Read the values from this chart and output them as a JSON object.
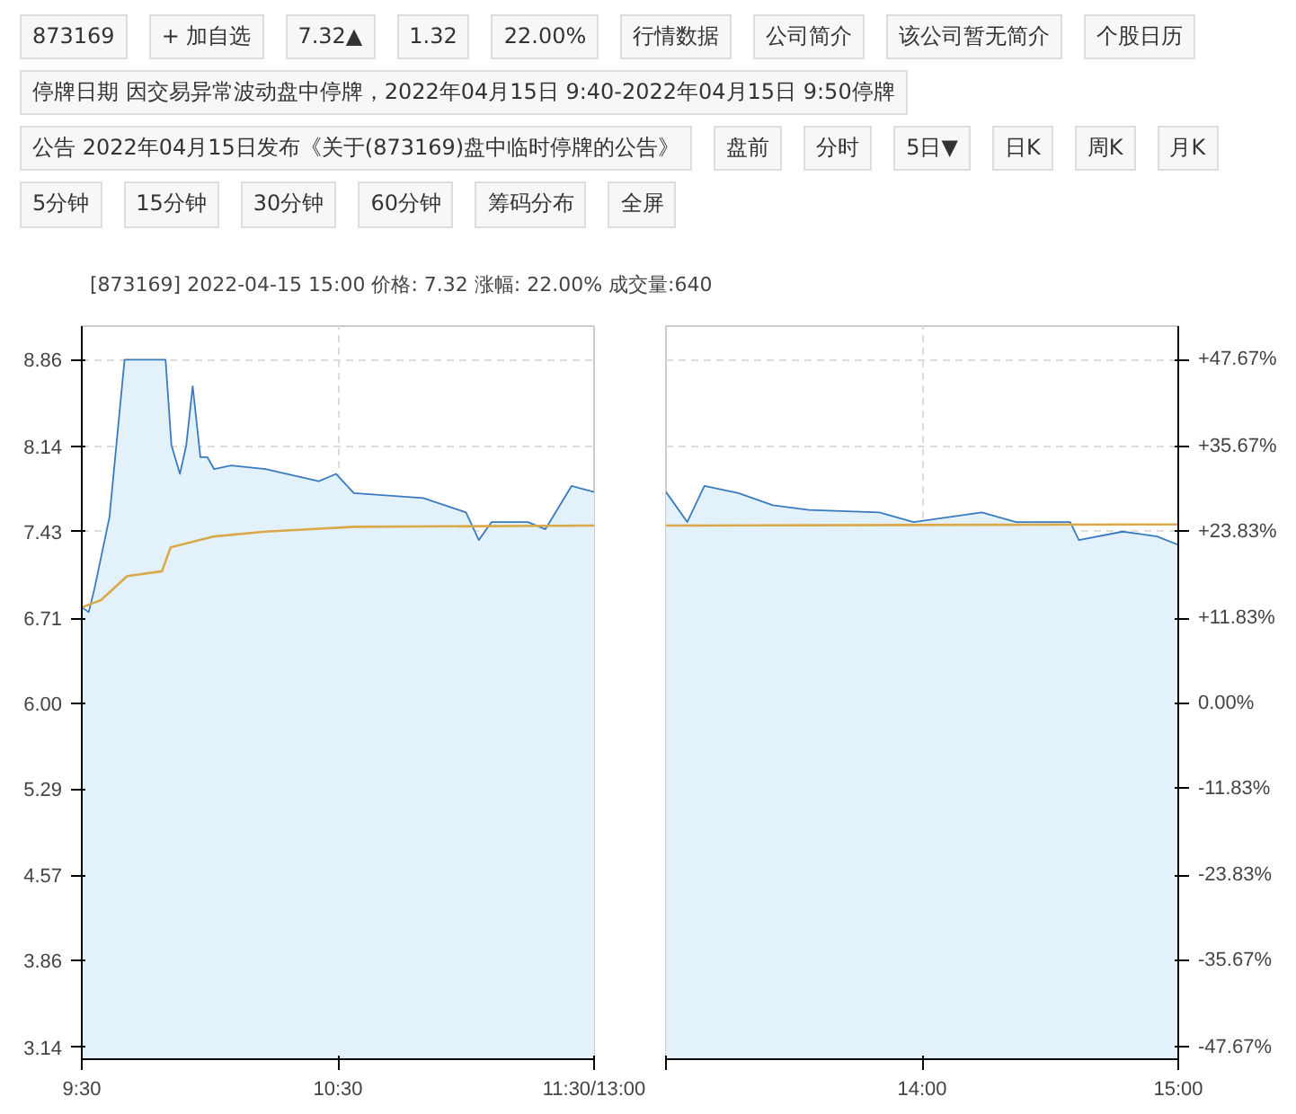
{
  "chart_data": [
    {
      "type": "line",
      "title": "[873169]  2022-04-15 15:00  价格: 7.32  涨幅: 22.00%  成交量:640",
      "annotations": [
        "873169",
        "+ 加自选",
        "7.32▲",
        "1.32",
        "22.00%",
        "行情数据",
        "公司简介",
        "该公司暂无简介",
        "个股日历",
        "停牌日期 因交易异常波动盘中停牌，2022年04月15日 9:40-2022年04月15日 9:50停牌",
        "公告 2022年04月15日发布《关于(873169)盘中临时停牌的公告》",
        "盘前",
        "分时",
        "5日▼",
        "日K",
        "周K",
        "月K",
        "5分钟",
        "15分钟",
        "30分钟",
        "60分钟",
        "筹码分布",
        "全屏"
      ],
      "series": [
        {
          "type": "area",
          "color": "#3a7bbf",
          "x": [
            9.5,
            9.527,
            9.55,
            9.608,
            9.667,
            9.827,
            9.85,
            9.883,
            9.908,
            9.933,
            9.963,
            9.99,
            10.017,
            10.083,
            10.217,
            10.425,
            10.493,
            10.562,
            10.833,
            11.0,
            11.05,
            11.1,
            11.242,
            11.31,
            11.412,
            11.5
          ],
          "values": [
            6.8,
            6.76,
            6.96,
            7.55,
            8.86,
            8.86,
            8.15,
            7.91,
            8.15,
            8.64,
            8.05,
            8.05,
            7.95,
            7.98,
            7.95,
            7.85,
            7.91,
            7.75,
            7.71,
            7.59,
            7.36,
            7.51,
            7.51,
            7.45,
            7.81,
            7.76
          ]
        },
        {
          "color": "#d9a94a",
          "x": [
            9.5,
            9.575,
            9.677,
            9.813,
            9.847,
            10.017,
            10.217,
            10.567,
            11.5
          ],
          "values": [
            6.8,
            6.86,
            7.06,
            7.1,
            7.3,
            7.39,
            7.43,
            7.47,
            7.48
          ]
        }
      ],
      "xlim": [
        9.5,
        11.5
      ],
      "xticks": [
        {
          "value": 9.5,
          "label": "9:30"
        },
        {
          "value": 10.5,
          "label": "10:30"
        },
        {
          "value": 11.5,
          "label": "11:30/13:00"
        }
      ],
      "ylim": [
        3.04,
        9.14
      ],
      "yticks": [
        3.14,
        3.86,
        4.57,
        5.29,
        {
          "value": 6,
          "label": "6.00"
        },
        6.71,
        7.43,
        8.14,
        8.86
      ],
      "grid": true
    },
    {
      "type": "line",
      "series": [
        {
          "type": "area",
          "color": "#3a7bbf",
          "x": [
            13,
            13.083,
            13.15,
            13.283,
            13.417,
            13.558,
            13.833,
            13.967,
            14.233,
            14.367,
            14.578,
            14.612,
            14.783,
            14.917,
            15
          ],
          "values": [
            7.76,
            7.51,
            7.81,
            7.75,
            7.65,
            7.61,
            7.59,
            7.51,
            7.59,
            7.51,
            7.51,
            7.36,
            7.43,
            7.39,
            7.32
          ]
        },
        {
          "color": "#d9a94a",
          "x": [
            13,
            15
          ],
          "values": [
            7.48,
            7.49
          ]
        }
      ],
      "xlim": [
        13,
        15
      ],
      "xticks": [
        {
          "value": 13,
          "label": null
        },
        {
          "value": 14,
          "label": "14:00"
        },
        {
          "value": 15,
          "label": "15:00"
        }
      ],
      "ylim": [
        3.04,
        9.14
      ],
      "yticks": [
        3.14,
        3.86,
        4.57,
        5.29,
        6,
        6.71,
        7.43,
        8.14,
        8.86
      ],
      "y2lim": [
        -49.33,
        52.33
      ],
      "y2ticks": [
        {
          "value": -47.67,
          "label": "-47.67%"
        },
        {
          "value": -35.67,
          "label": "-35.67%"
        },
        {
          "value": -23.83,
          "label": "-23.83%"
        },
        {
          "value": -11.83,
          "label": "-11.83%"
        },
        {
          "value": 0,
          "label": "0.00%"
        },
        {
          "value": 11.83,
          "label": "+11.83%"
        },
        {
          "value": 23.83,
          "label": "+23.83%"
        },
        {
          "value": 35.67,
          "label": "+35.67%"
        },
        {
          "value": 47.67,
          "label": "+47.67%"
        }
      ],
      "tick_labels": "x",
      "grid": true
    }
  ]
}
